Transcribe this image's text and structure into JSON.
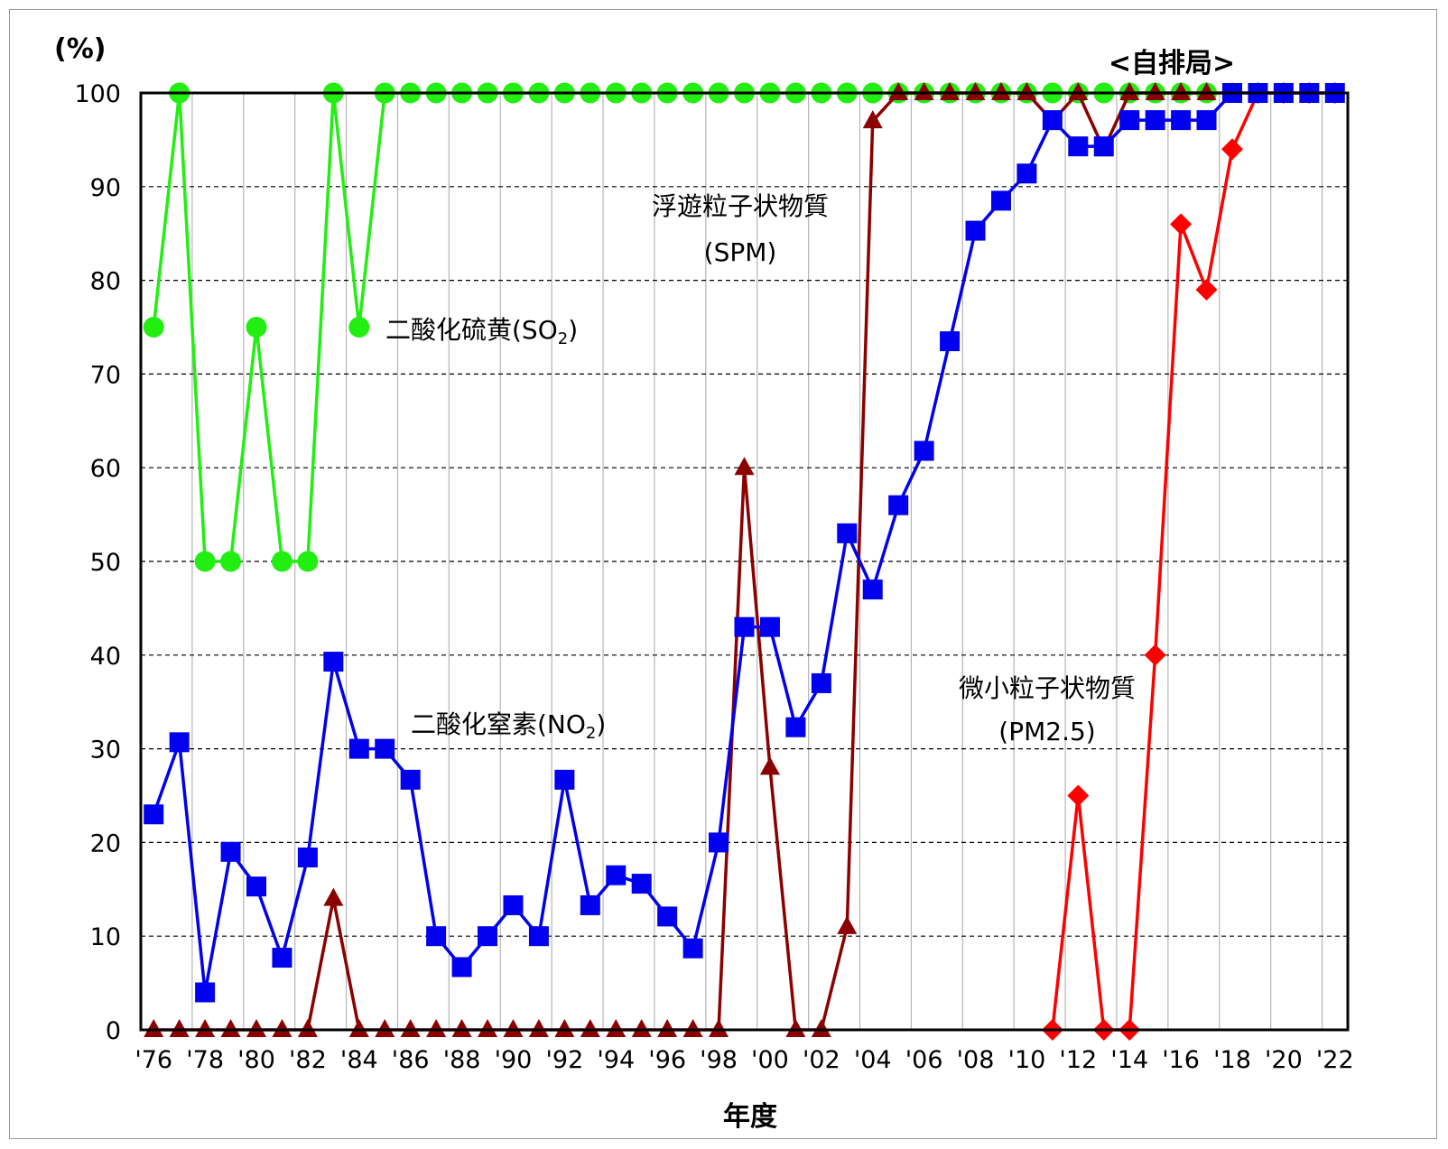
{
  "chart_data": {
    "type": "line",
    "title": "<自排局>",
    "ylabel": "(%)",
    "xlabel": "年度",
    "ylim": [
      0,
      100
    ],
    "yticks": [
      "0",
      "10",
      "20",
      "30",
      "40",
      "50",
      "60",
      "70",
      "80",
      "90",
      "100"
    ],
    "xtick_labels": [
      "'76",
      "'78",
      "'80",
      "'82",
      "'84",
      "'86",
      "'88",
      "'90",
      "'92",
      "'94",
      "'96",
      "'98",
      "'00",
      "'02",
      "'04",
      "'06",
      "'08",
      "'10",
      "'12",
      "'14",
      "'16",
      "'18",
      "'20",
      "'22"
    ],
    "grid": true,
    "x": [
      1976,
      1977,
      1978,
      1979,
      1980,
      1981,
      1982,
      1983,
      1984,
      1985,
      1986,
      1987,
      1988,
      1989,
      1990,
      1991,
      1992,
      1993,
      1994,
      1995,
      1996,
      1997,
      1998,
      1999,
      2000,
      2001,
      2002,
      2003,
      2004,
      2005,
      2006,
      2007,
      2008,
      2009,
      2010,
      2011,
      2012,
      2013,
      2014,
      2015,
      2016,
      2017,
      2018,
      2019,
      2020,
      2021,
      2022
    ],
    "series": [
      {
        "name": "二酸化硫黄(SO2)",
        "label_main": "二酸化硫黄(SO",
        "label_sub": "2",
        "label_end": ")",
        "color": "#22ee11",
        "marker": "circle",
        "values": [
          75,
          100,
          50,
          50,
          75,
          50,
          50,
          100,
          75,
          100,
          100,
          100,
          100,
          100,
          100,
          100,
          100,
          100,
          100,
          100,
          100,
          100,
          100,
          100,
          100,
          100,
          100,
          100,
          100,
          100,
          100,
          100,
          100,
          100,
          100,
          100,
          100,
          100,
          100,
          100,
          100,
          100,
          null,
          null,
          null,
          null,
          null
        ]
      },
      {
        "name": "二酸化窒素(NO2)",
        "label_main": "二酸化窒素(NO",
        "label_sub": "2",
        "label_end": ")",
        "color": "#8b0000",
        "marker": "triangle",
        "values": [
          0,
          0,
          0,
          0,
          0,
          0,
          0,
          14,
          0,
          0,
          0,
          0,
          0,
          0,
          0,
          0,
          0,
          0,
          0,
          0,
          0,
          0,
          0,
          60,
          28,
          0,
          0,
          11,
          97,
          100,
          100,
          100,
          100,
          100,
          100,
          97,
          100,
          94,
          100,
          100,
          100,
          100,
          100,
          null,
          null,
          null,
          null
        ]
      },
      {
        "name": "浮遊粒子状物質(SPM)",
        "label_main": "浮遊粒子状物質",
        "label_line2": "(SPM)",
        "color": "#0000ee",
        "marker": "square",
        "values": [
          23,
          30.7,
          4,
          19,
          15.3,
          7.7,
          18.4,
          39.3,
          30,
          30,
          26.7,
          10,
          6.7,
          10,
          13.3,
          10,
          26.7,
          13.3,
          16.5,
          15.6,
          12.1,
          8.7,
          20,
          43,
          43,
          32.3,
          37,
          53,
          47,
          56,
          61.8,
          73.5,
          85.3,
          88.5,
          91.4,
          97.1,
          94.3,
          94.3,
          97.1,
          97.1,
          97.1,
          97.1,
          100,
          100,
          100,
          100,
          100
        ]
      },
      {
        "name": "微小粒子状物質(PM2.5)",
        "label_main": "微小粒子状物質",
        "label_line2": "(PM2.5)",
        "color": "#ff0000",
        "marker": "diamond",
        "values": [
          null,
          null,
          null,
          null,
          null,
          null,
          null,
          null,
          null,
          null,
          null,
          null,
          null,
          null,
          null,
          null,
          null,
          null,
          null,
          null,
          null,
          null,
          null,
          null,
          null,
          null,
          null,
          null,
          null,
          null,
          null,
          null,
          null,
          null,
          null,
          0,
          25,
          0,
          0,
          40,
          86,
          79,
          94,
          100,
          100,
          100,
          100
        ]
      }
    ]
  }
}
